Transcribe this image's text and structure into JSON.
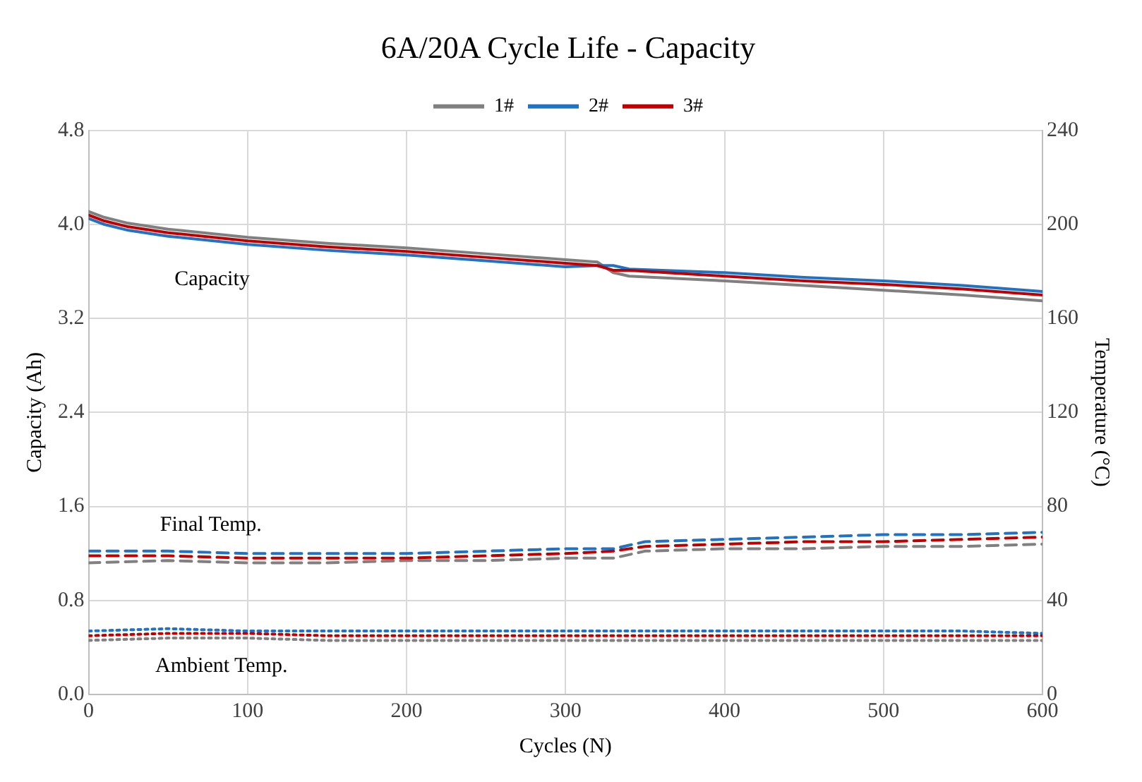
{
  "chart_data": {
    "type": "line",
    "title": "6A/20A Cycle Life - Capacity",
    "xlabel": "Cycles (N)",
    "ylabel": "Capacity (Ah)",
    "y2label": "Temperature (°C)",
    "xlim": [
      0,
      600
    ],
    "xticks": [
      0,
      100,
      200,
      300,
      400,
      500,
      600
    ],
    "ylim": [
      0,
      4.8
    ],
    "yticks": [
      {
        "value": 0,
        "label": "0.0"
      },
      {
        "value": 0.8,
        "label": "0.8"
      },
      {
        "value": 1.6,
        "label": "1.6"
      },
      {
        "value": 2.4,
        "label": "2.4"
      },
      {
        "value": 3.2,
        "label": "3.2"
      },
      {
        "value": 4,
        "label": "4.0"
      },
      {
        "value": 4.8,
        "label": "4.8"
      }
    ],
    "y2lim": [
      0,
      240
    ],
    "y2ticks": [
      0,
      40,
      80,
      120,
      160,
      200,
      240
    ],
    "grid": true,
    "legend": "top",
    "marker": "none",
    "annotations": [
      "Capacity",
      "Final Temp.",
      "Ambient Temp."
    ],
    "series": [
      {
        "name": "1#",
        "color": "#808080",
        "line_style": "solid",
        "x": [
          0,
          10,
          25,
          50,
          100,
          150,
          200,
          250,
          300,
          320,
          330,
          340,
          400,
          450,
          500,
          550,
          600
        ],
        "values": [
          4.11,
          4.06,
          4.01,
          3.96,
          3.89,
          3.84,
          3.8,
          3.75,
          3.7,
          3.68,
          3.59,
          3.56,
          3.52,
          3.48,
          3.44,
          3.4,
          3.35
        ]
      },
      {
        "name": "2#",
        "color": "#1f72c4",
        "line_style": "solid",
        "x": [
          0,
          10,
          25,
          50,
          100,
          150,
          200,
          250,
          300,
          320,
          330,
          340,
          400,
          450,
          500,
          550,
          600
        ],
        "values": [
          4.05,
          4,
          3.95,
          3.9,
          3.83,
          3.78,
          3.74,
          3.69,
          3.64,
          3.65,
          3.65,
          3.62,
          3.59,
          3.55,
          3.52,
          3.48,
          3.43
        ]
      },
      {
        "name": "3#",
        "color": "#c00000",
        "line_style": "solid",
        "x": [
          0,
          10,
          25,
          50,
          100,
          150,
          200,
          250,
          300,
          320,
          330,
          340,
          400,
          450,
          500,
          550,
          600
        ],
        "values": [
          4.08,
          4.03,
          3.98,
          3.93,
          3.86,
          3.81,
          3.77,
          3.72,
          3.67,
          3.65,
          3.61,
          3.61,
          3.56,
          3.52,
          3.49,
          3.45,
          3.4
        ]
      },
      {
        "color": "#808080",
        "line_style": "dashed",
        "axis": "y2",
        "x": [
          0,
          50,
          100,
          150,
          200,
          250,
          300,
          330,
          350,
          400,
          450,
          500,
          550,
          600
        ],
        "values": [
          56,
          57,
          56,
          56,
          57,
          57,
          58,
          58,
          61,
          62,
          62,
          63,
          63,
          64
        ]
      },
      {
        "color": "#1f72c4",
        "line_style": "dashed",
        "axis": "y2",
        "x": [
          0,
          50,
          100,
          150,
          200,
          250,
          300,
          330,
          350,
          400,
          450,
          500,
          550,
          600
        ],
        "values": [
          61,
          61,
          60,
          60,
          60,
          61,
          62,
          62,
          65,
          66,
          67,
          68,
          68,
          69
        ]
      },
      {
        "color": "#c00000",
        "line_style": "dashed",
        "axis": "y2",
        "x": [
          0,
          50,
          100,
          150,
          200,
          250,
          300,
          330,
          350,
          400,
          450,
          500,
          550,
          600
        ],
        "values": [
          59,
          59,
          58,
          58,
          58,
          59,
          60,
          61,
          63,
          64,
          65,
          65,
          66,
          67
        ]
      },
      {
        "color": "#808080",
        "line_style": "dotted",
        "axis": "y2",
        "x": [
          0,
          50,
          100,
          150,
          200,
          250,
          300,
          350,
          400,
          450,
          500,
          550,
          600
        ],
        "values": [
          23,
          24,
          24,
          23,
          23,
          23,
          23,
          23,
          23,
          23,
          23,
          23,
          23
        ]
      },
      {
        "color": "#1f72c4",
        "line_style": "dotted",
        "axis": "y2",
        "x": [
          0,
          50,
          100,
          150,
          200,
          250,
          300,
          350,
          400,
          450,
          500,
          550,
          600
        ],
        "values": [
          27,
          28,
          27,
          27,
          27,
          27,
          27,
          27,
          27,
          27,
          27,
          27,
          26
        ]
      },
      {
        "color": "#c00000",
        "line_style": "dotted",
        "axis": "y2",
        "x": [
          0,
          50,
          100,
          150,
          200,
          250,
          300,
          350,
          400,
          450,
          500,
          550,
          600
        ],
        "values": [
          25,
          26,
          26,
          25,
          25,
          25,
          25,
          25,
          25,
          25,
          25,
          25,
          25
        ]
      }
    ]
  }
}
